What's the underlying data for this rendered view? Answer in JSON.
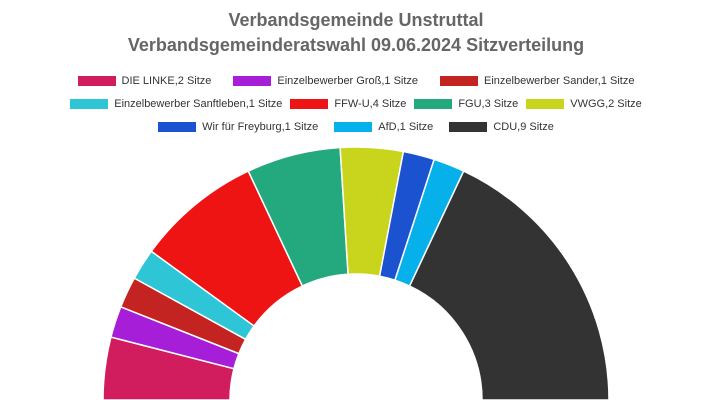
{
  "chart_data": {
    "type": "pie",
    "variant": "parliament-semicircle",
    "title": "Verbandsgemeinde Unstruttal",
    "subtitle": "Verbandsgemeinderatswahl 09.06.2024 Sitzverteilung",
    "legend_position": "top",
    "series": [
      {
        "name": "DIE LINKE,2 Sitze",
        "value": 2,
        "color": "#d11d5e"
      },
      {
        "name": "Einzelbewerber Groß,1 Sitze",
        "value": 1,
        "color": "#a61ed8"
      },
      {
        "name": "Einzelbewerber Sander,1 Sitze",
        "value": 1,
        "color": "#c42421"
      },
      {
        "name": "Einzelbewerber Sanftleben,1 Sitze",
        "value": 1,
        "color": "#2ec6d6"
      },
      {
        "name": "FFW-U,4 Sitze",
        "value": 4,
        "color": "#ee1414"
      },
      {
        "name": "FGU,3 Sitze",
        "value": 3,
        "color": "#24a97e"
      },
      {
        "name": "VWGG,2 Sitze",
        "value": 2,
        "color": "#c9d51c"
      },
      {
        "name": "Wir für Freyburg,1 Sitze",
        "value": 1,
        "color": "#1a52cf"
      },
      {
        "name": "AfD,1 Sitze",
        "value": 1,
        "color": "#06b0ea"
      },
      {
        "name": "CDU,9 Sitze",
        "value": 9,
        "color": "#333333"
      }
    ]
  }
}
